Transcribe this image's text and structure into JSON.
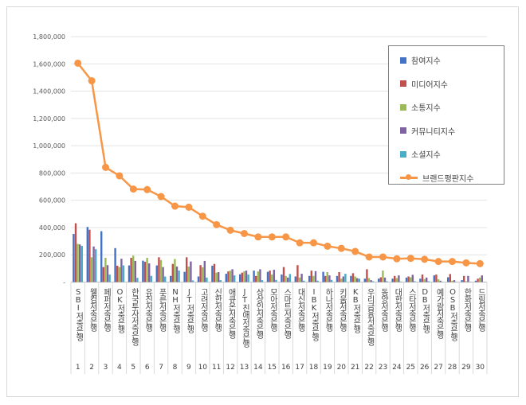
{
  "chart_data": {
    "type": "bar+line",
    "categories": [
      "SBI저축은행",
      "웰컴저축은행",
      "페퍼저축은행",
      "OK저축은행",
      "한국투자저축은행",
      "유진저축은행",
      "푸른저축은행",
      "NH저축은행",
      "JT저축은행",
      "고려저축은행",
      "신한저축은행",
      "애큐온저축은행",
      "JT친애저축은행",
      "상상인저축은행",
      "모아저축은행",
      "스마트저축은행",
      "대신저축은행",
      "IBK저축은행",
      "하나저축은행",
      "키움저축은행",
      "KB저축은행",
      "우리금융저축은행",
      "동양저축은행",
      "대한저축은행",
      "스타저축은행",
      "DB저축은행",
      "예가람저축은행",
      "OSB저축은행",
      "한화저축은행",
      "드림저축은행"
    ],
    "ranks": [
      "1",
      "2",
      "3",
      "4",
      "5",
      "6",
      "7",
      "8",
      "9",
      "10",
      "11",
      "12",
      "13",
      "14",
      "15",
      "16",
      "17",
      "18",
      "19",
      "20",
      "21",
      "22",
      "23",
      "24",
      "25",
      "26",
      "27",
      "28",
      "29",
      "30"
    ],
    "ylim": [
      0,
      1800000
    ],
    "yticks": [
      "-",
      "200,000",
      "400,000",
      "600,000",
      "800,000",
      "1,000,000",
      "1,200,000",
      "1,400,000",
      "1,600,000",
      "1,800,000"
    ],
    "grid": true,
    "legend_position": "right",
    "series": [
      {
        "name": "참여지수",
        "kind": "bar",
        "color": "#4472c4",
        "values": [
          353000,
          404000,
          373000,
          249000,
          122000,
          157000,
          122000,
          45000,
          75000,
          41000,
          120000,
          61000,
          57000,
          84000,
          75000,
          55000,
          41000,
          45000,
          75000,
          45000,
          45000,
          25000,
          25000,
          25000,
          33000,
          25000,
          49000,
          35000,
          14000,
          10000
        ]
      },
      {
        "name": "미디어지수",
        "kind": "bar",
        "color": "#c0504d",
        "values": [
          431000,
          384000,
          110000,
          120000,
          178000,
          149000,
          182000,
          133000,
          182000,
          124000,
          133000,
          78000,
          69000,
          45000,
          84000,
          110000,
          124000,
          84000,
          45000,
          73000,
          65000,
          94000,
          35000,
          45000,
          41000,
          55000,
          55000,
          59000,
          45000,
          25000
        ]
      },
      {
        "name": "소통지수",
        "kind": "bar",
        "color": "#9bbb59",
        "values": [
          280000,
          182000,
          178000,
          110000,
          194000,
          178000,
          161000,
          169000,
          114000,
          108000,
          69000,
          84000,
          78000,
          78000,
          55000,
          45000,
          33000,
          45000,
          73000,
          25000,
          41000,
          29000,
          84000,
          29000,
          35000,
          22000,
          20000,
          10000,
          6000,
          33000
        ]
      },
      {
        "name": "커뮤니티지수",
        "kind": "bar",
        "color": "#8064a2",
        "values": [
          276000,
          261000,
          124000,
          171000,
          155000,
          137000,
          110000,
          114000,
          151000,
          155000,
          73000,
          94000,
          84000,
          94000,
          90000,
          33000,
          61000,
          80000,
          49000,
          41000,
          29000,
          14000,
          33000,
          49000,
          53000,
          33000,
          10000,
          14000,
          45000,
          49000
        ]
      },
      {
        "name": "소셜지수",
        "kind": "bar",
        "color": "#4bacc6",
        "values": [
          265000,
          241000,
          55000,
          122000,
          31000,
          45000,
          41000,
          84000,
          12000,
          33000,
          14000,
          49000,
          55000,
          14000,
          16000,
          59000,
          10000,
          10000,
          16000,
          61000,
          25000,
          6000,
          6000,
          4000,
          6000,
          6000,
          2000,
          2000,
          2000,
          2000
        ]
      },
      {
        "name": "브랜드평판지수",
        "kind": "line",
        "color": "#f79646",
        "values": [
          1605000,
          1476000,
          841000,
          779000,
          682000,
          678000,
          627000,
          557000,
          549000,
          483000,
          421000,
          380000,
          356000,
          331000,
          331000,
          331000,
          288000,
          288000,
          263000,
          247000,
          225000,
          184000,
          184000,
          171000,
          174000,
          167000,
          151000,
          151000,
          141000,
          135000
        ]
      }
    ]
  }
}
